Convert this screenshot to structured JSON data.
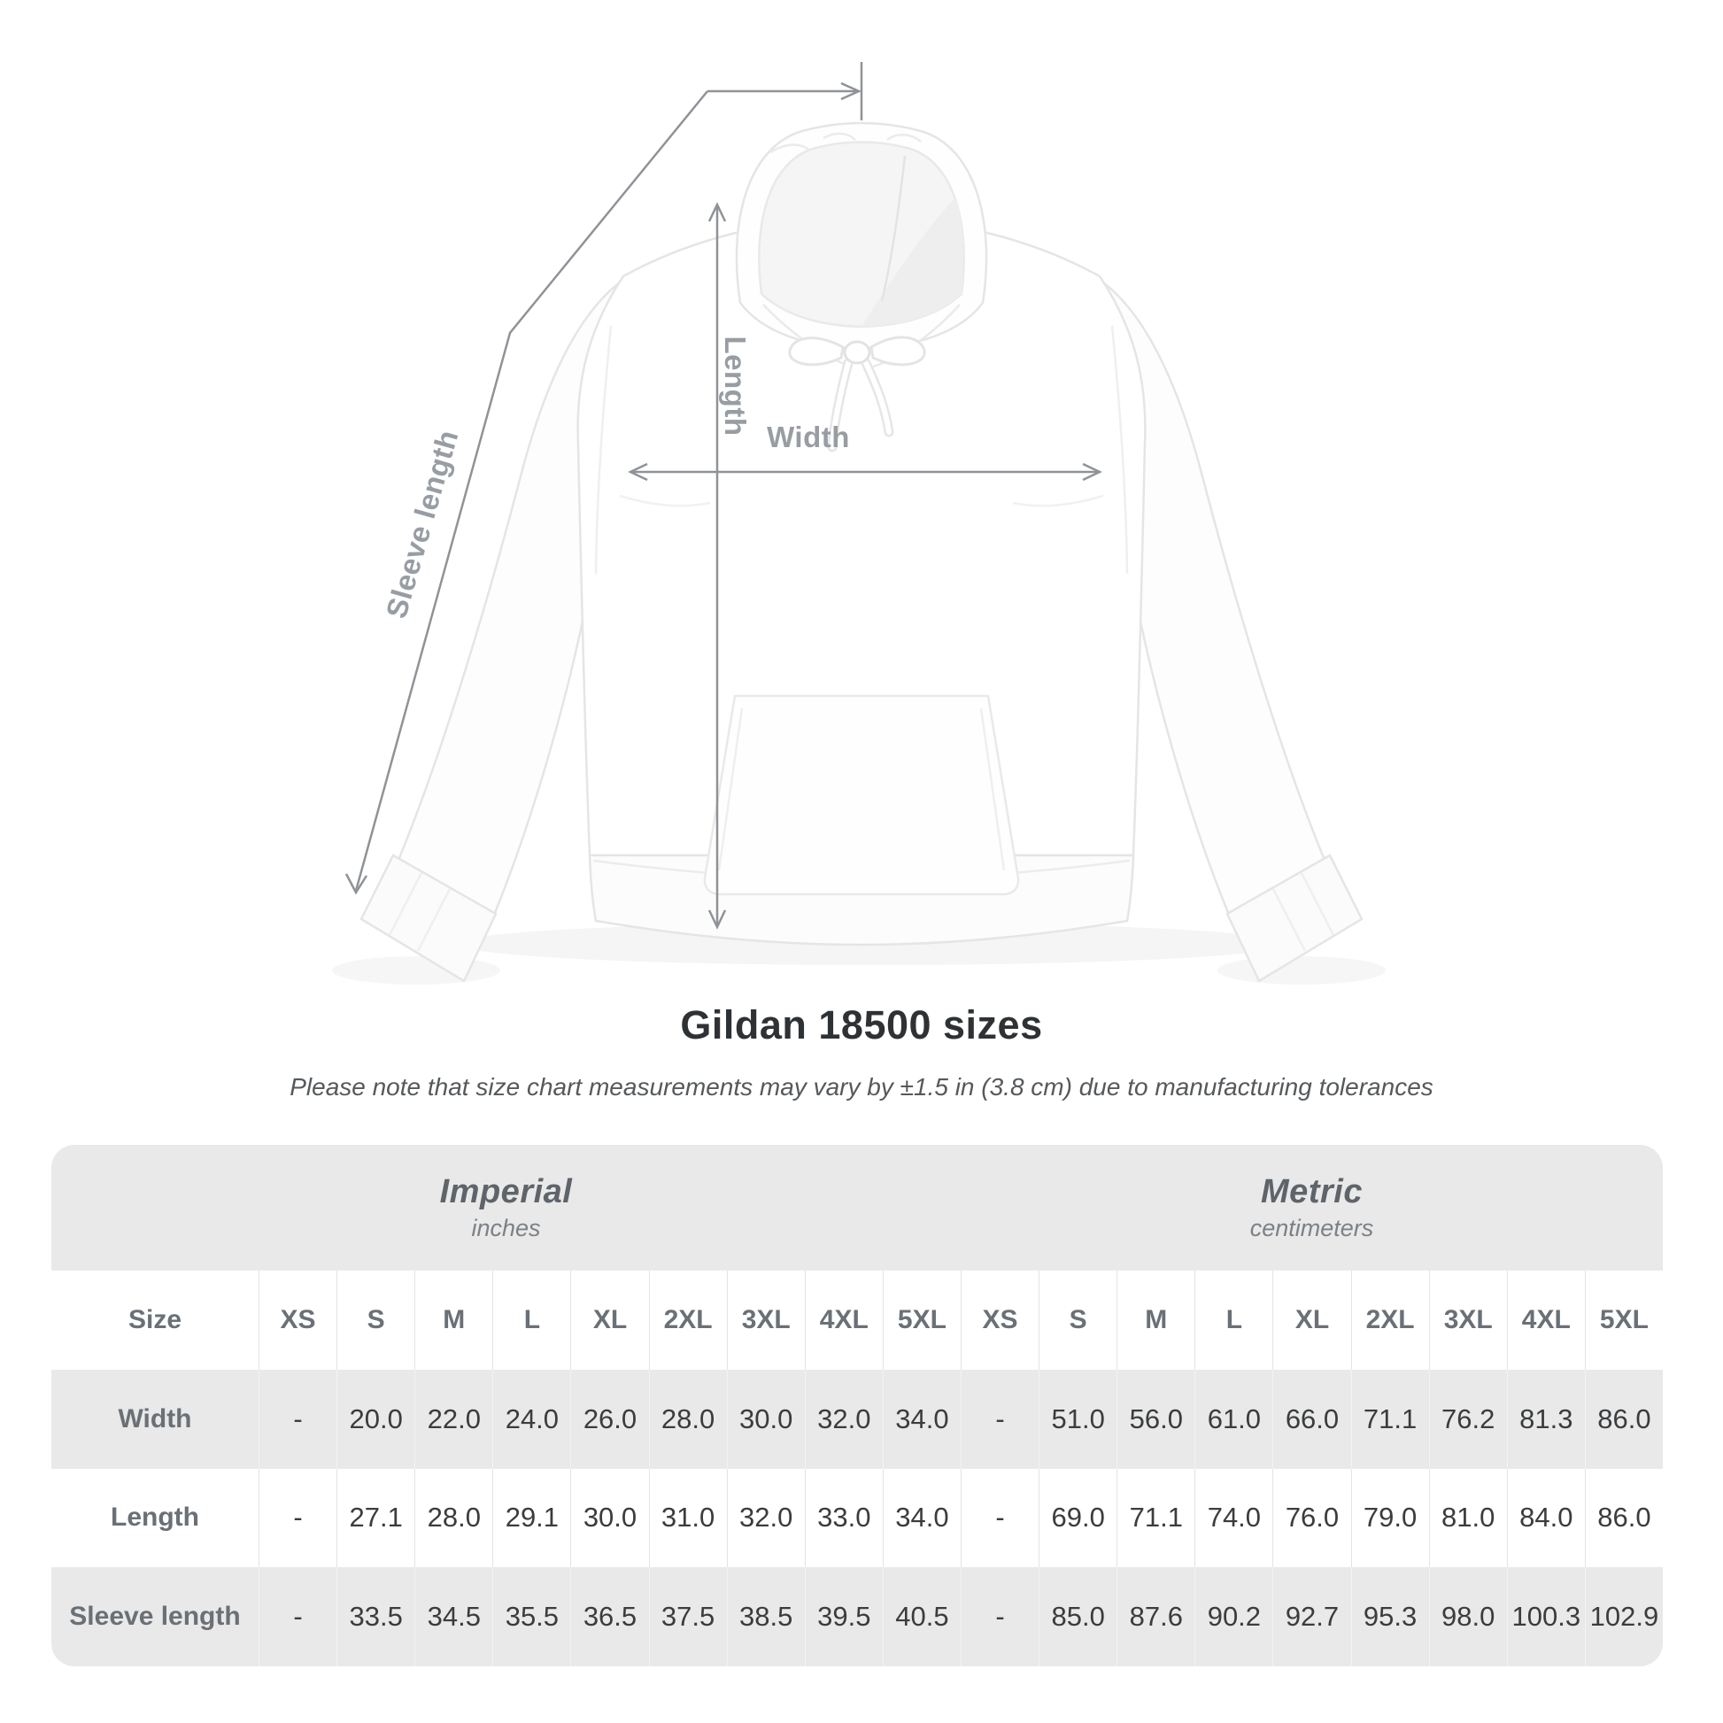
{
  "title": "Gildan 18500 sizes",
  "subtitle": "Please note that size chart measurements may vary by ±1.5 in (3.8 cm) due to manufacturing tolerances",
  "diagram": {
    "labels": {
      "length": "Length",
      "width": "Width",
      "sleeve": "Sleeve length"
    }
  },
  "table": {
    "unit_groups": [
      {
        "label": "Imperial",
        "sublabel": "inches"
      },
      {
        "label": "Metric",
        "sublabel": "centimeters"
      }
    ],
    "size_header": "Size",
    "sizes": [
      "XS",
      "S",
      "M",
      "L",
      "XL",
      "2XL",
      "3XL",
      "4XL",
      "5XL"
    ],
    "rows": [
      {
        "label": "Width",
        "imperial": [
          "-",
          "20.0",
          "22.0",
          "24.0",
          "26.0",
          "28.0",
          "30.0",
          "32.0",
          "34.0"
        ],
        "metric": [
          "-",
          "51.0",
          "56.0",
          "61.0",
          "66.0",
          "71.1",
          "76.2",
          "81.3",
          "86.0"
        ]
      },
      {
        "label": "Length",
        "imperial": [
          "-",
          "27.1",
          "28.0",
          "29.1",
          "30.0",
          "31.0",
          "32.0",
          "33.0",
          "34.0"
        ],
        "metric": [
          "-",
          "69.0",
          "71.1",
          "74.0",
          "76.0",
          "79.0",
          "81.0",
          "84.0",
          "86.0"
        ]
      },
      {
        "label": "Sleeve length",
        "imperial": [
          "-",
          "33.5",
          "34.5",
          "35.5",
          "36.5",
          "37.5",
          "38.5",
          "39.5",
          "40.5"
        ],
        "metric": [
          "-",
          "85.0",
          "87.6",
          "90.2",
          "92.7",
          "95.3",
          "98.0",
          "100.3",
          "102.9"
        ]
      }
    ]
  },
  "colors": {
    "measure_line": "#8f9397",
    "measure_label": "#989da3",
    "table_band": "#e9e9e9",
    "header_text": "#6a7076",
    "value_text": "#3a3c3e",
    "title_text": "#2f3234"
  }
}
